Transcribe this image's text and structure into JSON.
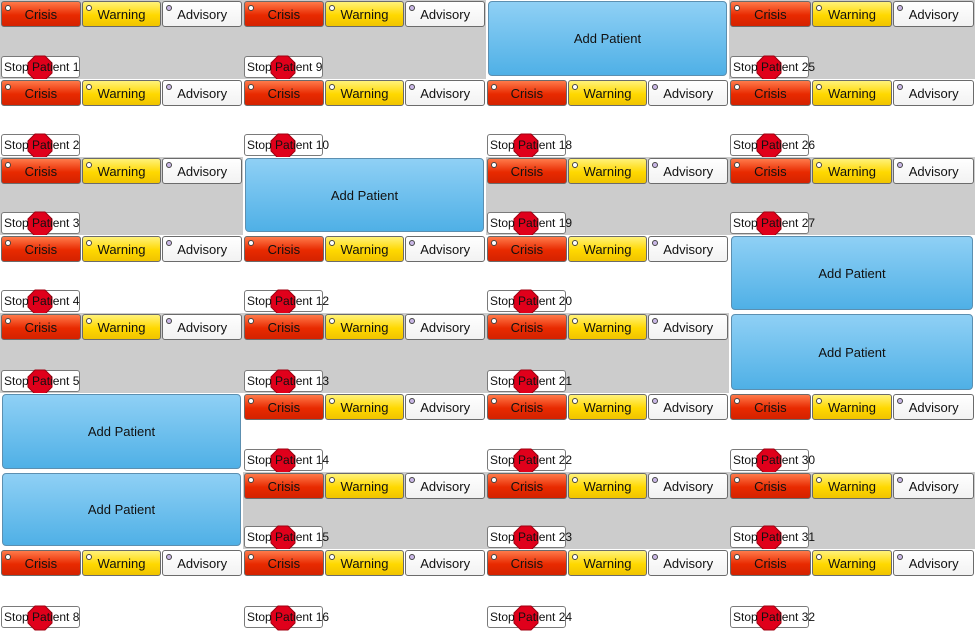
{
  "labels": {
    "crisis": "Crisis",
    "warning": "Warning",
    "advisory": "Advisory",
    "add_patient": "Add Patient"
  },
  "icons": {
    "stop": "stop-sign-icon",
    "indicator": "indicator-dot"
  },
  "colors": {
    "crisis": "#e82a00",
    "warning": "#ffd800",
    "advisory": "#f2f2f2",
    "add_patient": "#4fb0e6",
    "stop": "#e0001b",
    "alt_row": "#cccccc"
  },
  "slots": [
    {
      "type": "patient",
      "label": "Stop Patient 1"
    },
    {
      "type": "patient",
      "label": "Stop Patient 2"
    },
    {
      "type": "patient",
      "label": "Stop Patient 3"
    },
    {
      "type": "patient",
      "label": "Stop Patient 4"
    },
    {
      "type": "patient",
      "label": "Stop Patient 5"
    },
    {
      "type": "add"
    },
    {
      "type": "add"
    },
    {
      "type": "patient",
      "label": "Stop Patient 8"
    },
    {
      "type": "patient",
      "label": "Stop Patient 9"
    },
    {
      "type": "patient",
      "label": "Stop Patient 10"
    },
    {
      "type": "add"
    },
    {
      "type": "patient",
      "label": "Stop Patient 12"
    },
    {
      "type": "patient",
      "label": "Stop Patient 13"
    },
    {
      "type": "patient",
      "label": "Stop Patient 14"
    },
    {
      "type": "patient",
      "label": "Stop Patient 15"
    },
    {
      "type": "patient",
      "label": "Stop Patient 16"
    },
    {
      "type": "add"
    },
    {
      "type": "patient",
      "label": "Stop Patient 18"
    },
    {
      "type": "patient",
      "label": "Stop Patient 19"
    },
    {
      "type": "patient",
      "label": "Stop Patient 20"
    },
    {
      "type": "patient",
      "label": "Stop Patient 21"
    },
    {
      "type": "patient",
      "label": "Stop Patient 22"
    },
    {
      "type": "patient",
      "label": "Stop Patient 23"
    },
    {
      "type": "patient",
      "label": "Stop Patient 24"
    },
    {
      "type": "patient",
      "label": "Stop Patient 25"
    },
    {
      "type": "patient",
      "label": "Stop Patient 26"
    },
    {
      "type": "patient",
      "label": "Stop Patient 27"
    },
    {
      "type": "add"
    },
    {
      "type": "add"
    },
    {
      "type": "patient",
      "label": "Stop Patient 30"
    },
    {
      "type": "patient",
      "label": "Stop Patient 31"
    },
    {
      "type": "patient",
      "label": "Stop Patient 32"
    }
  ]
}
